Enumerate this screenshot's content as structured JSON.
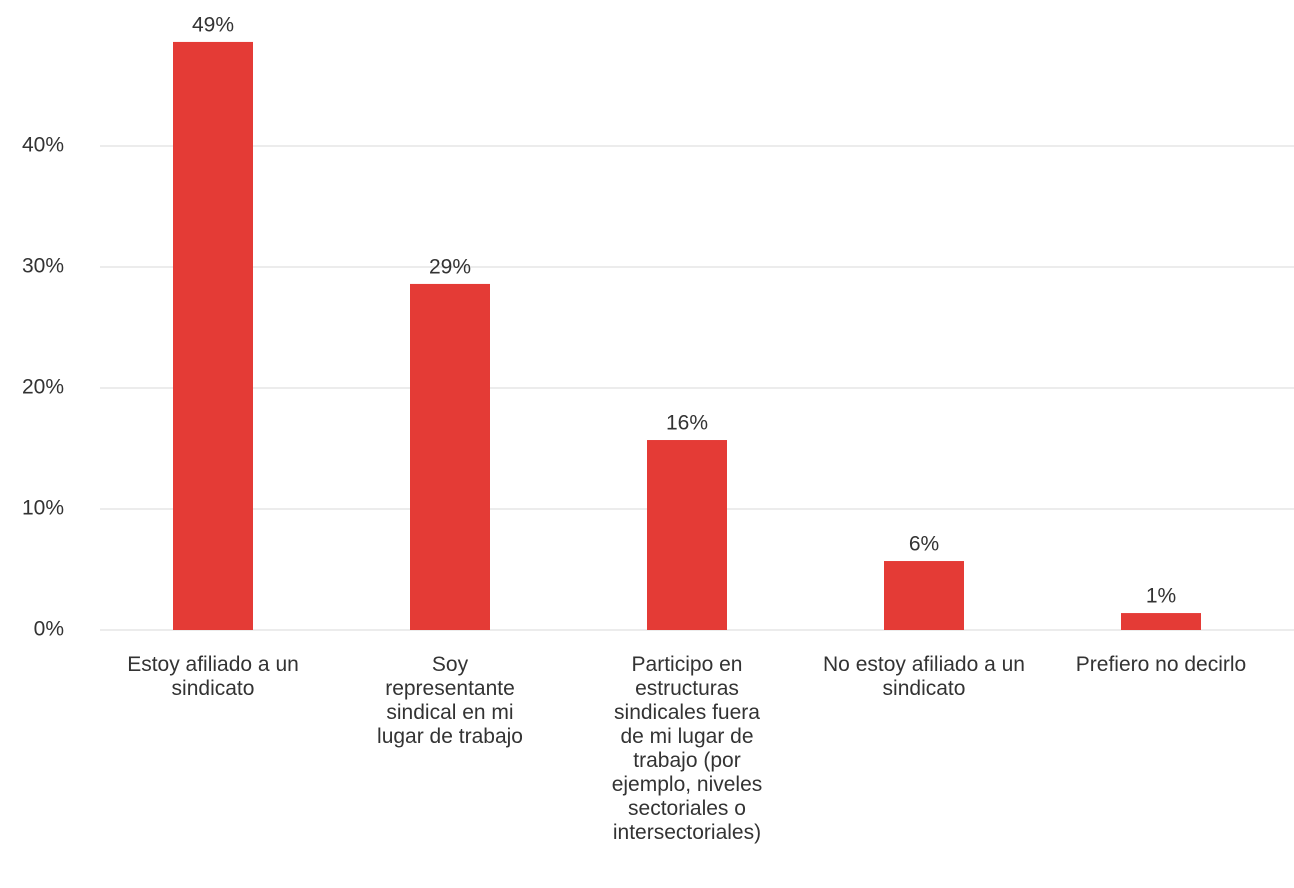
{
  "chart_data": {
    "type": "bar",
    "categories": [
      "Estoy afiliado a un sindicato",
      "Soy representante sindical en mi lugar de trabajo",
      "Participo en estructuras sindicales fuera de mi lugar de trabajo (por ejemplo, niveles sectoriales o intersectoriales)",
      "No estoy afiliado a un sindicato",
      "Prefiero no decirlo"
    ],
    "values": [
      48.6,
      28.6,
      15.7,
      5.7,
      1.4
    ],
    "value_labels": [
      "49%",
      "29%",
      "16%",
      "6%",
      "1%"
    ],
    "color": "#e43b36",
    "ylim": [
      0,
      50
    ],
    "yticks": [
      {
        "value": 0,
        "label": "0%"
      },
      {
        "value": 10,
        "label": "10%"
      },
      {
        "value": 20,
        "label": "20%"
      },
      {
        "value": 30,
        "label": "30%"
      },
      {
        "value": 40,
        "label": "40%"
      }
    ],
    "grid": true
  }
}
